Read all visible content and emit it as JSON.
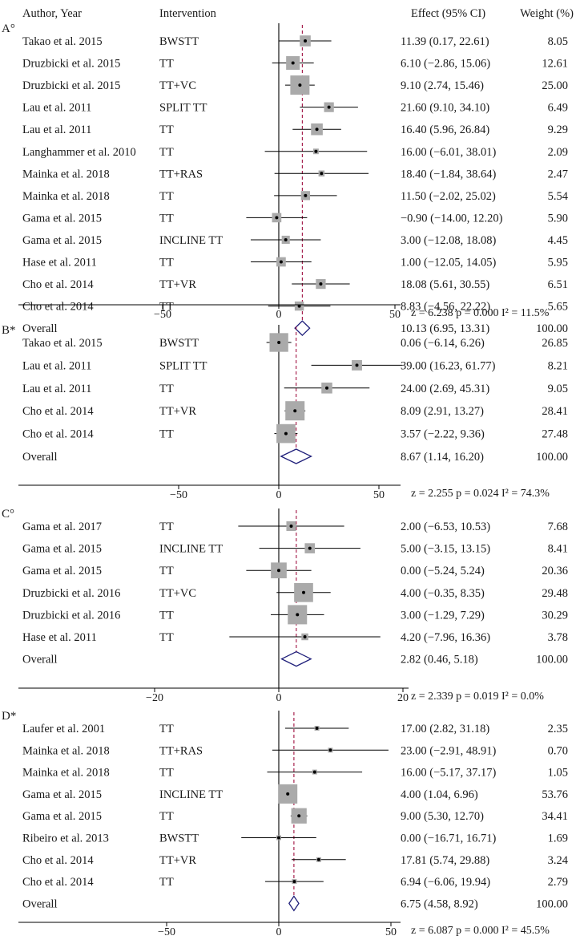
{
  "header": {
    "study": "Author, Year",
    "intervention": "Intervention",
    "effect": "Effect (95% CI)",
    "weight": "Weight (%)"
  },
  "chart_data": [
    {
      "type": "forest",
      "panel": "A°",
      "xlim": [
        -75,
        60
      ],
      "xticks": [
        "−50",
        "0",
        "50"
      ],
      "xtick_values": [
        -50,
        0,
        50
      ],
      "rows": [
        {
          "study": "Takao et al. 2015",
          "intervention": "BWSTT",
          "effect": 11.39,
          "lo": 0.17,
          "hi": 22.61,
          "ci_text": "11.39 (0.17, 22.61)",
          "weight": 8.05,
          "weight_text": "8.05"
        },
        {
          "study": "Druzbicki et al. 2015",
          "intervention": "TT",
          "effect": 6.1,
          "lo": -2.86,
          "hi": 15.06,
          "ci_text": "6.10 (−2.86, 15.06)",
          "weight": 12.61,
          "weight_text": "12.61"
        },
        {
          "study": "Druzbicki et al. 2015",
          "intervention": "TT+VC",
          "effect": 9.1,
          "lo": 2.74,
          "hi": 15.46,
          "ci_text": "9.10 (2.74, 15.46)",
          "weight": 25.0,
          "weight_text": "25.00"
        },
        {
          "study": "Lau et al. 2011",
          "intervention": "SPLIT TT",
          "effect": 21.6,
          "lo": 9.1,
          "hi": 34.1,
          "ci_text": "21.60 (9.10, 34.10)",
          "weight": 6.49,
          "weight_text": "6.49"
        },
        {
          "study": "Lau et al. 2011",
          "intervention": "TT",
          "effect": 16.4,
          "lo": 5.96,
          "hi": 26.84,
          "ci_text": "16.40 (5.96, 26.84)",
          "weight": 9.29,
          "weight_text": "9.29"
        },
        {
          "study": "Langhammer et al. 2010",
          "intervention": "TT",
          "effect": 16.0,
          "lo": -6.01,
          "hi": 38.01,
          "ci_text": "16.00 (−6.01, 38.01)",
          "weight": 2.09,
          "weight_text": "2.09"
        },
        {
          "study": "Mainka et al. 2018",
          "intervention": "TT+RAS",
          "effect": 18.4,
          "lo": -1.84,
          "hi": 38.64,
          "ci_text": "18.40 (−1.84, 38.64)",
          "weight": 2.47,
          "weight_text": "2.47"
        },
        {
          "study": "Mainka et al. 2018",
          "intervention": "TT",
          "effect": 11.5,
          "lo": -2.02,
          "hi": 25.02,
          "ci_text": "11.50 (−2.02, 25.02)",
          "weight": 5.54,
          "weight_text": "5.54"
        },
        {
          "study": "Gama et al. 2015",
          "intervention": "TT",
          "effect": -0.9,
          "lo": -14.0,
          "hi": 12.2,
          "ci_text": "−0.90 (−14.00, 12.20)",
          "weight": 5.9,
          "weight_text": "5.90"
        },
        {
          "study": "Gama et al. 2015",
          "intervention": "INCLINE TT",
          "effect": 3.0,
          "lo": -12.08,
          "hi": 18.08,
          "ci_text": "3.00 (−12.08, 18.08)",
          "weight": 4.45,
          "weight_text": "4.45"
        },
        {
          "study": "Hase et al. 2011",
          "intervention": "TT",
          "effect": 1.0,
          "lo": -12.05,
          "hi": 14.05,
          "ci_text": "1.00 (−12.05, 14.05)",
          "weight": 5.95,
          "weight_text": "5.95"
        },
        {
          "study": "Cho et al. 2014",
          "intervention": "TT+VR",
          "effect": 18.08,
          "lo": 5.61,
          "hi": 30.55,
          "ci_text": "18.08 (5.61, 30.55)",
          "weight": 6.51,
          "weight_text": "6.51"
        },
        {
          "study": "Cho et al. 2014",
          "intervention": "TT",
          "effect": 8.83,
          "lo": -4.56,
          "hi": 22.22,
          "ci_text": "8.83 (−4.56, 22.22)",
          "weight": 5.65,
          "weight_text": "5.65"
        }
      ],
      "overall": {
        "label": "Overall",
        "effect": 10.13,
        "lo": 6.95,
        "hi": 13.31,
        "ci_text": "10.13 (6.95, 13.31)",
        "weight_text": "100.00"
      },
      "stats": "z =  6.238  p = 0.000  I² =  11.5%"
    },
    {
      "type": "forest",
      "panel": "B*",
      "xlim": [
        -75,
        60
      ],
      "xticks": [
        "−50",
        "0",
        "50"
      ],
      "xtick_values": [
        -50,
        0,
        50
      ],
      "rows": [
        {
          "study": "Takao et al. 2015",
          "intervention": "BWSTT",
          "effect": 0.06,
          "lo": -6.14,
          "hi": 6.26,
          "ci_text": "0.06 (−6.14, 6.26)",
          "weight": 26.85,
          "weight_text": "26.85"
        },
        {
          "study": "Lau et al. 2011",
          "intervention": "SPLIT TT",
          "effect": 39.0,
          "lo": 16.23,
          "hi": 61.77,
          "ci_text": "39.00 (16.23, 61.77)",
          "weight": 8.21,
          "weight_text": "8.21"
        },
        {
          "study": "Lau et al. 2011",
          "intervention": "TT",
          "effect": 24.0,
          "lo": 2.69,
          "hi": 45.31,
          "ci_text": "24.00 (2.69, 45.31)",
          "weight": 9.05,
          "weight_text": "9.05"
        },
        {
          "study": "Cho et al. 2014",
          "intervention": "TT+VR",
          "effect": 8.09,
          "lo": 2.91,
          "hi": 13.27,
          "ci_text": "8.09 (2.91, 13.27)",
          "weight": 28.41,
          "weight_text": "28.41"
        },
        {
          "study": "Cho et al. 2014",
          "intervention": "TT",
          "effect": 3.57,
          "lo": -2.22,
          "hi": 9.36,
          "ci_text": "3.57 (−2.22, 9.36)",
          "weight": 27.48,
          "weight_text": "27.48"
        }
      ],
      "overall": {
        "label": "Overall",
        "effect": 8.67,
        "lo": 1.14,
        "hi": 16.2,
        "ci_text": "8.67 (1.14, 16.20)",
        "weight_text": "100.00"
      },
      "stats": "z =  2.255  p = 0.024  I² =  74.3%"
    },
    {
      "type": "forest",
      "panel": "C°",
      "xlim": [
        -30,
        22
      ],
      "xticks": [
        "−20",
        "0",
        "20"
      ],
      "xtick_values": [
        -20,
        0,
        20
      ],
      "rows": [
        {
          "study": "Gama et al. 2017",
          "intervention": "TT",
          "effect": 2.0,
          "lo": -6.53,
          "hi": 10.53,
          "ci_text": "2.00 (−6.53, 10.53)",
          "weight": 7.68,
          "weight_text": "7.68"
        },
        {
          "study": "Gama et al. 2015",
          "intervention": "INCLINE TT",
          "effect": 5.0,
          "lo": -3.15,
          "hi": 13.15,
          "ci_text": "5.00 (−3.15, 13.15)",
          "weight": 8.41,
          "weight_text": "8.41"
        },
        {
          "study": "Gama et al. 2015",
          "intervention": "TT",
          "effect": 0.0,
          "lo": -5.24,
          "hi": 5.24,
          "ci_text": "0.00 (−5.24, 5.24)",
          "weight": 20.36,
          "weight_text": "20.36"
        },
        {
          "study": "Druzbicki et al. 2016",
          "intervention": "TT+VC",
          "effect": 4.0,
          "lo": -0.35,
          "hi": 8.35,
          "ci_text": "4.00 (−0.35, 8.35)",
          "weight": 29.48,
          "weight_text": "29.48"
        },
        {
          "study": "Druzbicki et al. 2016",
          "intervention": "TT",
          "effect": 3.0,
          "lo": -1.29,
          "hi": 7.29,
          "ci_text": "3.00 (−1.29, 7.29)",
          "weight": 30.29,
          "weight_text": "30.29"
        },
        {
          "study": "Hase et al. 2011",
          "intervention": "TT",
          "effect": 4.2,
          "lo": -7.96,
          "hi": 16.36,
          "ci_text": "4.20 (−7.96, 16.36)",
          "weight": 3.78,
          "weight_text": "3.78"
        }
      ],
      "overall": {
        "label": "Overall",
        "effect": 2.82,
        "lo": 0.46,
        "hi": 5.18,
        "ci_text": "2.82 (0.46, 5.18)",
        "weight_text": "100.00"
      },
      "stats": "z =  2.339  p = 0.019  I² =  0.0%"
    },
    {
      "type": "forest",
      "panel": "D*",
      "xlim": [
        -75,
        60
      ],
      "xticks": [
        "−50",
        "0",
        "50"
      ],
      "xtick_values": [
        -50,
        0,
        50
      ],
      "rows": [
        {
          "study": "Laufer et al. 2001",
          "intervention": "TT",
          "effect": 17.0,
          "lo": 2.82,
          "hi": 31.18,
          "ci_text": "17.00 (2.82, 31.18)",
          "weight": 2.35,
          "weight_text": "2.35"
        },
        {
          "study": "Mainka et al. 2018",
          "intervention": "TT+RAS",
          "effect": 23.0,
          "lo": -2.91,
          "hi": 48.91,
          "ci_text": "23.00 (−2.91, 48.91)",
          "weight": 0.7,
          "weight_text": "0.70"
        },
        {
          "study": "Mainka et al. 2018",
          "intervention": "TT",
          "effect": 16.0,
          "lo": -5.17,
          "hi": 37.17,
          "ci_text": "16.00 (−5.17, 37.17)",
          "weight": 1.05,
          "weight_text": "1.05"
        },
        {
          "study": "Gama et al. 2015",
          "intervention": "INCLINE TT",
          "effect": 4.0,
          "lo": 1.04,
          "hi": 6.96,
          "ci_text": "4.00 (1.04, 6.96)",
          "weight": 53.76,
          "weight_text": "53.76"
        },
        {
          "study": "Gama et al. 2015",
          "intervention": "TT",
          "effect": 9.0,
          "lo": 5.3,
          "hi": 12.7,
          "ci_text": "9.00 (5.30, 12.70)",
          "weight": 34.41,
          "weight_text": "34.41"
        },
        {
          "study": "Ribeiro et al. 2013",
          "intervention": "BWSTT",
          "effect": 0.0,
          "lo": -16.71,
          "hi": 16.71,
          "ci_text": "0.00 (−16.71, 16.71)",
          "weight": 1.69,
          "weight_text": "1.69"
        },
        {
          "study": "Cho et al. 2014",
          "intervention": "TT+VR",
          "effect": 17.81,
          "lo": 5.74,
          "hi": 29.88,
          "ci_text": "17.81 (5.74, 29.88)",
          "weight": 3.24,
          "weight_text": "3.24"
        },
        {
          "study": "Cho et al. 2014",
          "intervention": "TT",
          "effect": 6.94,
          "lo": -6.06,
          "hi": 19.94,
          "ci_text": "6.94 (−6.06, 19.94)",
          "weight": 2.79,
          "weight_text": "2.79"
        }
      ],
      "overall": {
        "label": "Overall",
        "effect": 6.75,
        "lo": 4.58,
        "hi": 8.92,
        "ci_text": "6.75 (4.58, 8.92)",
        "weight_text": "100.00"
      },
      "stats": "z =  6.087  p = 0.000  I² =  45.5%"
    }
  ],
  "colors": {
    "text": "#1a1a1a",
    "ci_line": "#000000",
    "weight_box": "#aaaaaa",
    "point": "#000000",
    "overall_diamond": "#1f1f7a",
    "pooled_line": "#a01040",
    "axis": "#000000"
  }
}
